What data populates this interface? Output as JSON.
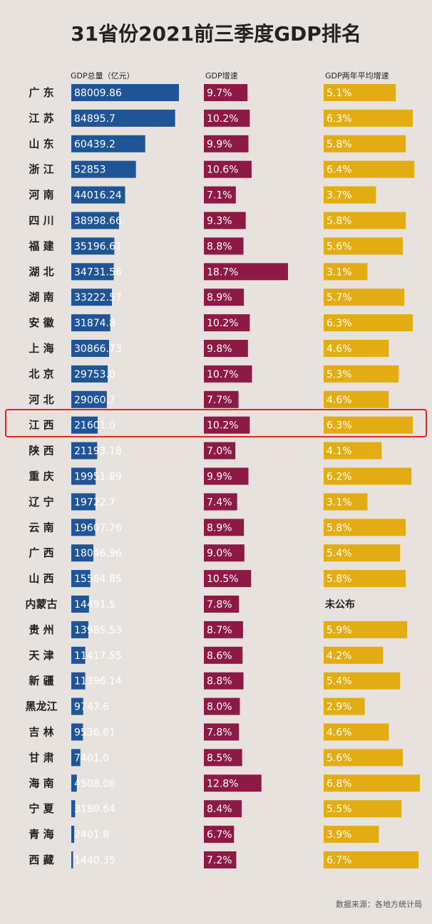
{
  "title": "31省份2021前三季度GDP排名",
  "source": "数据来源：各地方统计局",
  "highlight_province": "江西",
  "chart_data": {
    "type": "bar",
    "title": "31省份2021前三季度GDP排名",
    "categories": [
      "广 东",
      "江 苏",
      "山 东",
      "浙 江",
      "河 南",
      "四 川",
      "福 建",
      "湖 北",
      "湖 南",
      "安 徽",
      "上 海",
      "北 京",
      "河 北",
      "江 西",
      "陕 西",
      "重 庆",
      "辽 宁",
      "云 南",
      "广 西",
      "山 西",
      "内蒙古",
      "贵 州",
      "天 津",
      "新 疆",
      "黑龙江",
      "吉 林",
      "甘 肃",
      "海 南",
      "宁 夏",
      "青 海",
      "西 藏"
    ],
    "series": [
      {
        "name": "GDP总量（亿元）",
        "color": "#1f5596",
        "labels": [
          "88009.86",
          "84895.7",
          "60439.2",
          "52853",
          "44016.24",
          "38998.66",
          "35196.61",
          "34731.56",
          "33222.57",
          "31874.8",
          "30866.73",
          "29753.0",
          "29060.7",
          "21601.0",
          "21193.18",
          "19951.89",
          "19722.7",
          "19607.76",
          "18046.96",
          "15584.85",
          "14491.5",
          "13985.53",
          "11417.55",
          "11396.14",
          "9747.6",
          "9536.61",
          "7401.0",
          "4508.06",
          "3180.64",
          "2401.8",
          "1440.35"
        ],
        "values": [
          88009.86,
          84895.7,
          60439.2,
          52853,
          44016.24,
          38998.66,
          35196.61,
          34731.56,
          33222.57,
          31874.8,
          30866.73,
          29753.0,
          29060.7,
          21601.0,
          21193.18,
          19951.89,
          19722.7,
          19607.76,
          18046.96,
          15584.85,
          14491.5,
          13985.53,
          11417.55,
          11396.14,
          9747.6,
          9536.61,
          7401.0,
          4508.06,
          3180.64,
          2401.8,
          1440.35
        ]
      },
      {
        "name": "GDP增速",
        "color": "#8c1a45",
        "labels": [
          "9.7%",
          "10.2%",
          "9.9%",
          "10.6%",
          "7.1%",
          "9.3%",
          "8.8%",
          "18.7%",
          "8.9%",
          "10.2%",
          "9.8%",
          "10.7%",
          "7.7%",
          "10.2%",
          "7.0%",
          "9.9%",
          "7.4%",
          "8.9%",
          "9.0%",
          "10.5%",
          "7.8%",
          "8.7%",
          "8.6%",
          "8.8%",
          "8.0%",
          "7.8%",
          "8.5%",
          "12.8%",
          "8.4%",
          "6.7%",
          "7.2%"
        ],
        "values": [
          9.7,
          10.2,
          9.9,
          10.6,
          7.1,
          9.3,
          8.8,
          18.7,
          8.9,
          10.2,
          9.8,
          10.7,
          7.7,
          10.2,
          7.0,
          9.9,
          7.4,
          8.9,
          9.0,
          10.5,
          7.8,
          8.7,
          8.6,
          8.8,
          8.0,
          7.8,
          8.5,
          12.8,
          8.4,
          6.7,
          7.2
        ]
      },
      {
        "name": "GDP两年平均增速",
        "color": "#e3ac12",
        "labels": [
          "5.1%",
          "6.3%",
          "5.8%",
          "6.4%",
          "3.7%",
          "5.8%",
          "5.6%",
          "3.1%",
          "5.7%",
          "6.3%",
          "4.6%",
          "5.3%",
          "4.6%",
          "6.3%",
          "4.1%",
          "6.2%",
          "3.1%",
          "5.8%",
          "5.4%",
          "5.8%",
          "未公布",
          "5.9%",
          "4.2%",
          "5.4%",
          "2.9%",
          "4.6%",
          "5.6%",
          "6.8%",
          "5.5%",
          "3.9%",
          "6.7%"
        ],
        "values": [
          5.1,
          6.3,
          5.8,
          6.4,
          3.7,
          5.8,
          5.6,
          3.1,
          5.7,
          6.3,
          4.6,
          5.3,
          4.6,
          6.3,
          4.1,
          6.2,
          3.1,
          5.8,
          5.4,
          5.8,
          null,
          5.9,
          4.2,
          5.4,
          2.9,
          4.6,
          5.6,
          6.8,
          5.5,
          3.9,
          6.7
        ]
      }
    ],
    "grid": false,
    "legend": "none"
  }
}
